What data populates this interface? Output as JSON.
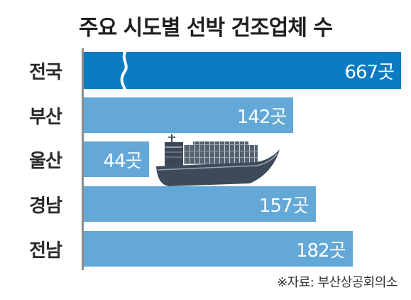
{
  "chart_data": {
    "type": "bar",
    "orientation": "horizontal",
    "title": "주요 시도별 선박 건조업체 수",
    "categories": [
      "전국",
      "부산",
      "울산",
      "경남",
      "전남"
    ],
    "values": [
      667,
      142,
      44,
      157,
      182
    ],
    "data_labels": [
      "667곳",
      "142곳",
      "44곳",
      "157곳",
      "182곳"
    ],
    "xlabel": "",
    "ylabel": "",
    "bar_colors": [
      "#0b7cc1",
      "#63a8d6",
      "#63a8d6",
      "#63a8d6",
      "#63a8d6"
    ],
    "axis_break_on_first_bar": true,
    "grid": false,
    "legend": "none"
  },
  "decoration": {
    "icon": "container-ship-icon"
  },
  "source": "※자료: 부산상공회의소"
}
